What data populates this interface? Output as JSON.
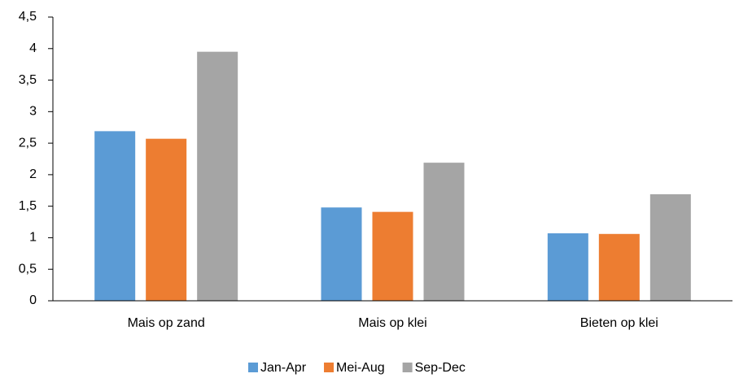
{
  "chart_data": {
    "type": "bar",
    "categories": [
      "Mais op zand",
      "Mais op klei",
      "Bieten op klei"
    ],
    "series": [
      {
        "name": "Jan-Apr",
        "color": "#5b9bd5",
        "values": [
          2.69,
          1.48,
          1.07
        ]
      },
      {
        "name": "Mei-Aug",
        "color": "#ed7d31",
        "values": [
          2.57,
          1.41,
          1.06
        ]
      },
      {
        "name": "Sep-Dec",
        "color": "#a5a5a5",
        "values": [
          3.95,
          2.19,
          1.69
        ]
      }
    ],
    "ylim": [
      0,
      4.5
    ],
    "yticks": [
      0,
      {
        "value": 0.5,
        "label": "0,5"
      },
      1,
      {
        "value": 1.5,
        "label": "1,5"
      },
      2,
      {
        "value": 2.5,
        "label": "2,5"
      },
      3,
      {
        "value": 3.5,
        "label": "3,5"
      },
      4,
      {
        "value": 4.5,
        "label": "4,5"
      }
    ],
    "grid": false,
    "legend": "bottom"
  }
}
